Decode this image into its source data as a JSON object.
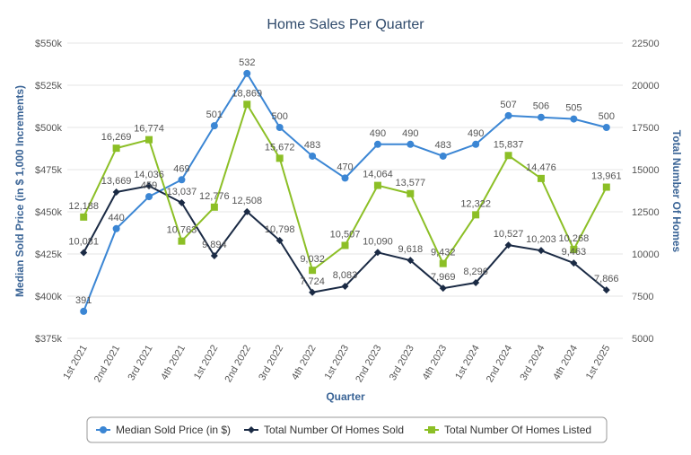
{
  "chart_data": {
    "type": "line",
    "title": "Home Sales Per Quarter",
    "xlabel": "Quarter",
    "ylabel_left": "Median Sold Price (in $ 1,000 Increments)",
    "ylabel_right": "Total Number Of Homes",
    "categories": [
      "1st 2021",
      "2nd 2021",
      "3rd 2021",
      "4th 2021",
      "1st 2022",
      "2nd 2022",
      "3rd 2022",
      "4th 2022",
      "1st 2023",
      "2nd 2023",
      "3rd 2023",
      "4th 2023",
      "1st 2024",
      "2nd 2024",
      "3rd 2024",
      "4th 2024",
      "1st 2025"
    ],
    "left_axis": {
      "min": 375,
      "max": 550,
      "step": 25,
      "ticks": [
        "$375k",
        "$400k",
        "$425k",
        "$450k",
        "$475k",
        "$500k",
        "$525k",
        "$550k"
      ]
    },
    "right_axis": {
      "min": 5000,
      "max": 22500,
      "step": 2500,
      "ticks": [
        "5000",
        "7500",
        "10000",
        "12500",
        "15000",
        "17500",
        "20000",
        "22500"
      ]
    },
    "grid": true,
    "legend_position": "bottom",
    "series": [
      {
        "name": "Median Sold Price (in $)",
        "axis": "left",
        "color": "#3b86d4",
        "marker": "circle",
        "values": [
          391,
          440,
          459,
          469,
          501,
          532,
          500,
          483,
          470,
          490,
          490,
          483,
          490,
          507,
          506,
          505,
          500
        ],
        "labels": [
          "391",
          "440",
          "459",
          "469",
          "501",
          "532",
          "500",
          "483",
          "470",
          "490",
          "490",
          "483",
          "490",
          "507",
          "506",
          "505",
          "500"
        ]
      },
      {
        "name": "Total Number Of Homes Sold",
        "axis": "right",
        "color": "#1a2a44",
        "marker": "diamond",
        "values": [
          10081,
          13669,
          14036,
          13037,
          9894,
          12508,
          10798,
          7724,
          8083,
          10090,
          9618,
          7969,
          8296,
          10527,
          10203,
          9463,
          7866
        ],
        "labels": [
          "10,081",
          "13,669",
          "14,036",
          "13,037",
          "9,894",
          "12,508",
          "10,798",
          "7,724",
          "8,083",
          "10,090",
          "9,618",
          "7,969",
          "8,296",
          "10,527",
          "10,203",
          "9,463",
          "7,866"
        ]
      },
      {
        "name": "Total Number Of Homes Listed",
        "axis": "right",
        "color": "#8cbf26",
        "marker": "square",
        "values": [
          12188,
          16269,
          16774,
          10763,
          12776,
          18869,
          15672,
          9032,
          10507,
          14064,
          13577,
          9432,
          12322,
          15837,
          14476,
          10268,
          13961
        ],
        "labels": [
          "12,188",
          "16,269",
          "16,774",
          "10,763",
          "12,776",
          "18,869",
          "15,672",
          "9,032",
          "10,507",
          "14,064",
          "13,577",
          "9,432",
          "12,322",
          "15,837",
          "14,476",
          "10,268",
          "13,961"
        ]
      }
    ]
  }
}
